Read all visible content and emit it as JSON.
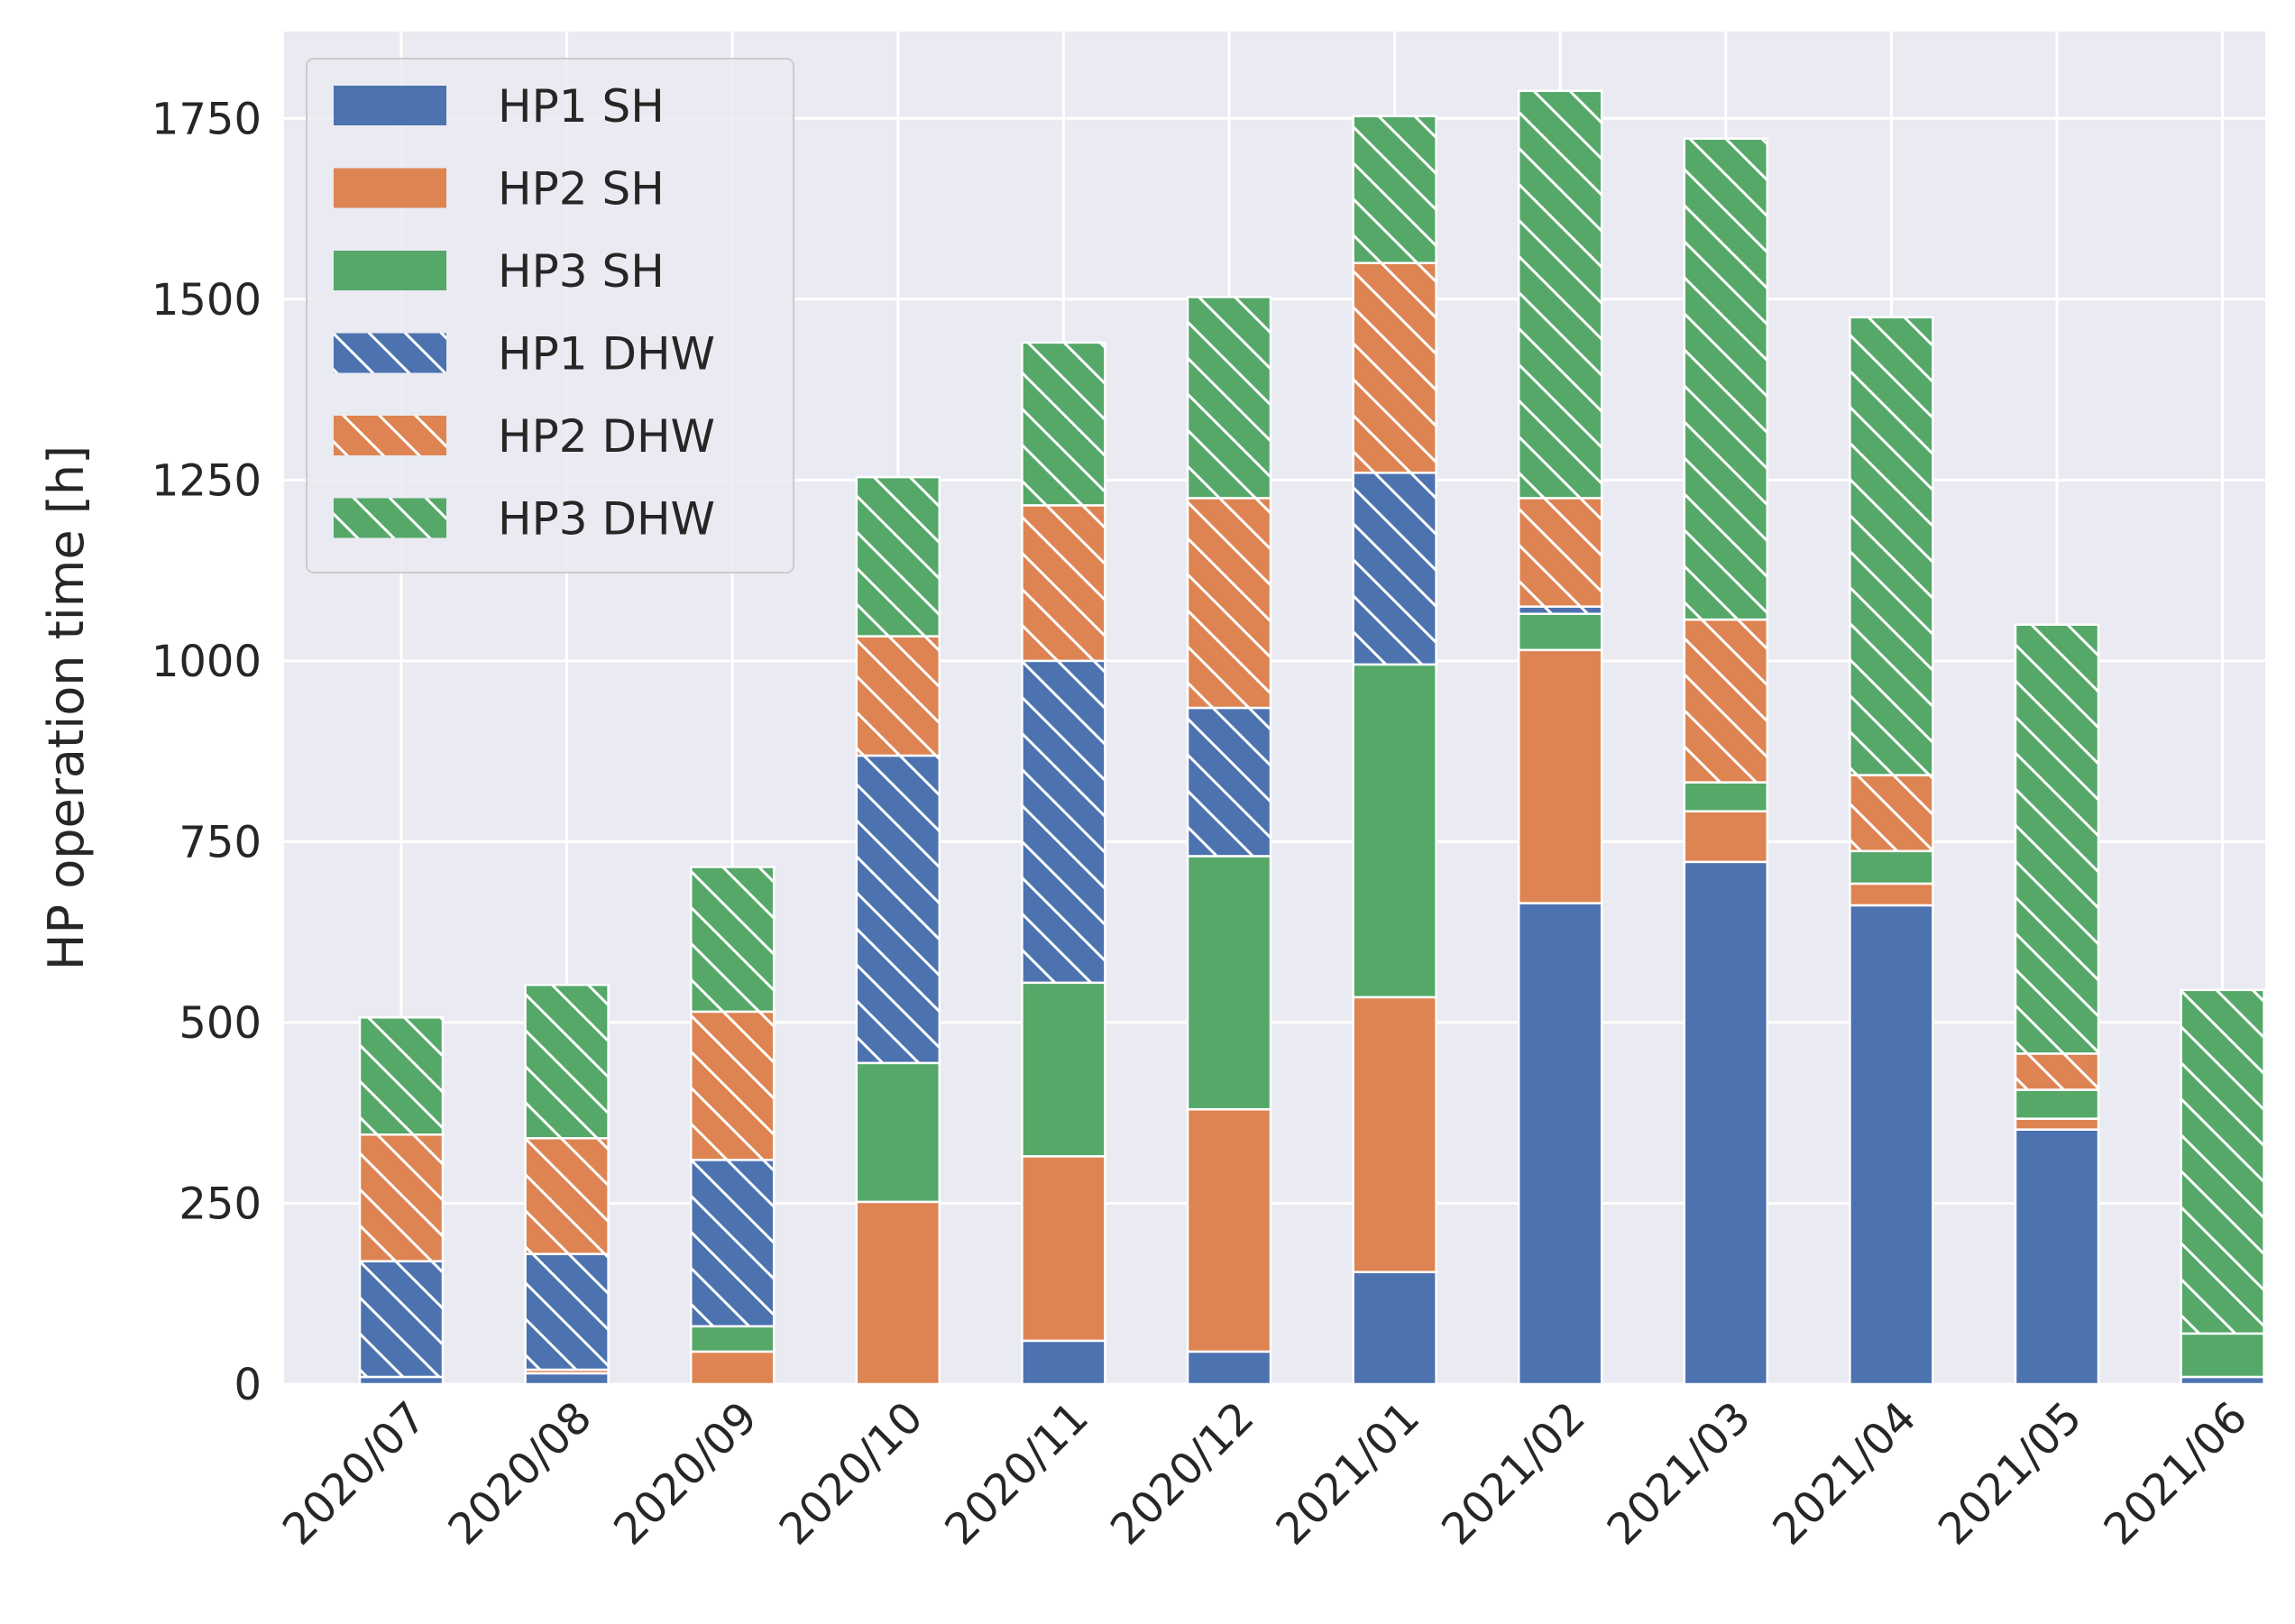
{
  "chart_data": {
    "type": "bar",
    "stacked": true,
    "title": "",
    "xlabel": "",
    "ylabel": "HP operation time [h]",
    "ylim": [
      0,
      1870
    ],
    "yticks": [
      0,
      250,
      500,
      750,
      1000,
      1250,
      1500,
      1750
    ],
    "grid": true,
    "legend_position": "top-left",
    "categories": [
      "2020/07",
      "2020/08",
      "2020/09",
      "2020/10",
      "2020/11",
      "2020/12",
      "2021/01",
      "2021/02",
      "2021/03",
      "2021/04",
      "2021/05",
      "2021/06"
    ],
    "series": [
      {
        "name": "HP1 SH",
        "color": "#4c72b0",
        "hatch": false,
        "values": [
          10,
          15,
          0,
          0,
          60,
          45,
          155,
          665,
          722,
          662,
          352,
          10
        ]
      },
      {
        "name": "HP2 SH",
        "color": "#dd8452",
        "hatch": false,
        "values": [
          0,
          5,
          45,
          252,
          255,
          335,
          380,
          350,
          70,
          30,
          15,
          0
        ]
      },
      {
        "name": "HP3 SH",
        "color": "#55a868",
        "hatch": false,
        "values": [
          0,
          0,
          35,
          192,
          240,
          350,
          460,
          50,
          40,
          45,
          40,
          60
        ]
      },
      {
        "name": "HP1 DHW",
        "color": "#4c72b0",
        "hatch": true,
        "values": [
          160,
          160,
          230,
          425,
          445,
          205,
          265,
          10,
          0,
          0,
          0,
          0
        ]
      },
      {
        "name": "HP2 DHW",
        "color": "#dd8452",
        "hatch": true,
        "values": [
          175,
          160,
          205,
          165,
          215,
          290,
          290,
          150,
          225,
          105,
          50,
          0
        ]
      },
      {
        "name": "HP3 DHW",
        "color": "#55a868",
        "hatch": true,
        "values": [
          162,
          212,
          200,
          220,
          225,
          278,
          203,
          563,
          665,
          633,
          593,
          475
        ]
      }
    ]
  }
}
